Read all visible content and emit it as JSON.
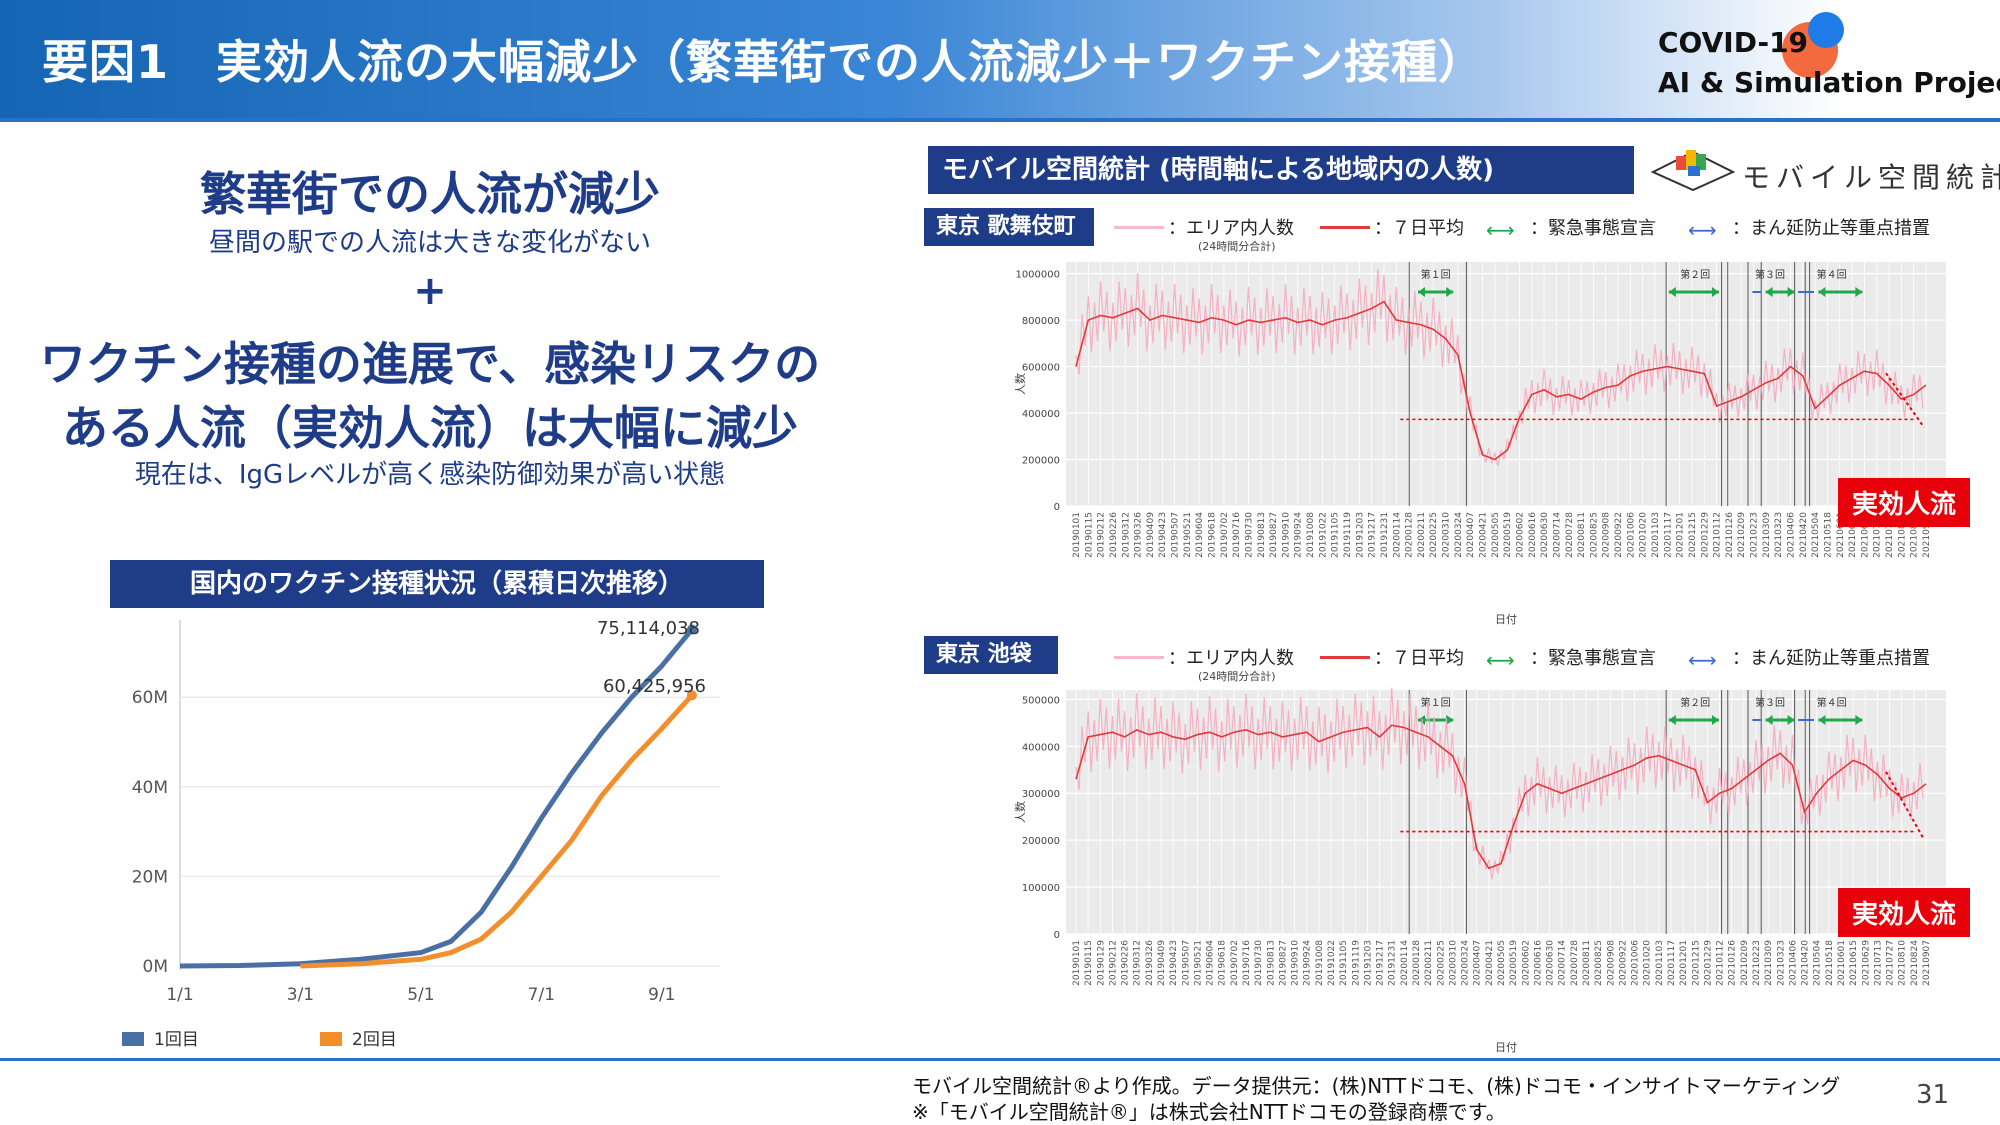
{
  "header": {
    "title": "要因1　実効人流の大幅減少（繁華街での人流減少＋ワクチン接種）",
    "project_line1": "COVID-19",
    "project_line2": "AI & Simulation Project"
  },
  "left": {
    "headline1": "繁華街での人流が減少",
    "sub1": "昼間の駅での人流は大きな変化がない",
    "plus": "+",
    "headline2": "ワクチン接種の進展で、感染リスクの",
    "headline3": "ある人流（実効人流）は大幅に減少",
    "sub2": "現在は、IgGレベルが高く感染防御効果が高い状態"
  },
  "vaccine_chart": {
    "title": "国内のワクチン接種状況（累積日次推移）",
    "label_first": "75,114,038",
    "label_second": "60,425,956",
    "legend_first": "1回目",
    "legend_second": "2回目"
  },
  "mobile": {
    "title": "モバイル空間統計 (時間軸による地域内の人数)",
    "logo_text": "モバイル空間統計",
    "area1": "東京 歌舞伎町",
    "area2": "東京 池袋",
    "legend_area": "：エリア内人数",
    "legend_area_sub": "(24時間分合計)",
    "legend_avg": "：７日平均",
    "legend_emergency": "：緊急事態宣言",
    "legend_priority": "：まん延防止等重点措置",
    "effective_label": "実効人流",
    "ylabel": "人数",
    "xlabel": "日付",
    "periods": [
      "第１回",
      "第２回",
      "第３回",
      "第４回"
    ]
  },
  "footer": {
    "line1": "モバイル空間統計®より作成。データ提供元：(株)NTTドコモ、(株)ドコモ・インサイトマーケティング",
    "line2": "※「モバイル空間統計®」は株式会社NTTドコモの登録商標です。",
    "page": "31"
  },
  "chart_data": [
    {
      "type": "line",
      "title": "国内のワクチン接種状況（累積日次推移）",
      "x_ticks": [
        "1/1",
        "3/1",
        "5/1",
        "7/1",
        "9/1"
      ],
      "y_ticks": [
        "0M",
        "20M",
        "40M",
        "60M"
      ],
      "ylim": [
        0,
        75000000
      ],
      "series": [
        {
          "name": "1回目",
          "color": "#4a6fa5",
          "x": [
            "1/1",
            "2/1",
            "3/1",
            "4/1",
            "5/1",
            "5/15",
            "6/1",
            "6/15",
            "7/1",
            "7/15",
            "8/1",
            "8/15",
            "9/1",
            "9/15"
          ],
          "values": [
            0,
            100000,
            500000,
            1500000,
            3000000,
            5500000,
            12000000,
            22000000,
            33000000,
            43000000,
            52000000,
            60000000,
            67000000,
            75114038
          ]
        },
        {
          "name": "2回目",
          "color": "#f28e2b",
          "x": [
            "3/1",
            "4/1",
            "5/1",
            "5/15",
            "6/1",
            "6/15",
            "7/1",
            "7/15",
            "8/1",
            "8/15",
            "9/1",
            "9/15"
          ],
          "values": [
            0,
            500000,
            1500000,
            3000000,
            6000000,
            12000000,
            20000000,
            28000000,
            38000000,
            46000000,
            53000000,
            60425956
          ]
        }
      ],
      "data_labels": [
        "75,114,038",
        "60,425,956"
      ]
    },
    {
      "type": "line",
      "title": "東京 歌舞伎町",
      "ylabel": "人数",
      "xlabel": "日付",
      "y_ticks": [
        0,
        200000,
        400000,
        600000,
        800000,
        1000000
      ],
      "ylim": [
        0,
        1050000
      ],
      "x_ticks": [
        "20190101",
        "20190115",
        "20190212",
        "20190226",
        "20190312",
        "20190326",
        "20190409",
        "20190423",
        "20190507",
        "20190521",
        "20190604",
        "20190618",
        "20190702",
        "20190716",
        "20190730",
        "20190813",
        "20190827",
        "20190910",
        "20190924",
        "20191008",
        "20191022",
        "20191105",
        "20191119",
        "20191203",
        "20191217",
        "20191231",
        "20200114",
        "20200128",
        "20200211",
        "20200225",
        "20200310",
        "20200324",
        "20200407",
        "20200421",
        "20200505",
        "20200519",
        "20200602",
        "20200616",
        "20200630",
        "20200714",
        "20200728",
        "20200811",
        "20200825",
        "20200908",
        "20200922",
        "20201006",
        "20201020",
        "20201103",
        "20201117",
        "20201201",
        "20201215",
        "20201229",
        "20210112",
        "20210126",
        "20210209",
        "20210223",
        "20210309",
        "20210323",
        "20210406",
        "20210420",
        "20210504",
        "20210518",
        "20210601",
        "20210615",
        "20210629",
        "20210713",
        "20210727",
        "20210810",
        "20210824",
        "20210907"
      ],
      "series": [
        {
          "name": "７日平均",
          "color": "#e03a3a",
          "values": [
            600000,
            800000,
            820000,
            810000,
            830000,
            850000,
            800000,
            820000,
            810000,
            800000,
            790000,
            810000,
            800000,
            780000,
            800000,
            790000,
            800000,
            810000,
            790000,
            800000,
            780000,
            800000,
            810000,
            830000,
            850000,
            880000,
            800000,
            790000,
            780000,
            760000,
            720000,
            650000,
            400000,
            220000,
            200000,
            240000,
            380000,
            480000,
            500000,
            470000,
            480000,
            460000,
            490000,
            510000,
            520000,
            560000,
            580000,
            590000,
            600000,
            590000,
            580000,
            570000,
            430000,
            450000,
            470000,
            500000,
            530000,
            550000,
            600000,
            560000,
            420000,
            470000,
            520000,
            550000,
            580000,
            570000,
            520000,
            460000,
            480000,
            520000
          ]
        }
      ]
    },
    {
      "type": "line",
      "title": "東京 池袋",
      "ylabel": "人数",
      "xlabel": "日付",
      "y_ticks": [
        0,
        100000,
        200000,
        300000,
        400000,
        500000
      ],
      "ylim": [
        0,
        520000
      ],
      "x_ticks": [
        "20190101",
        "20190115",
        "20190129",
        "20190212",
        "20190226",
        "20190312",
        "20190326",
        "20190409",
        "20190423",
        "20190507",
        "20190521",
        "20190604",
        "20190618",
        "20190702",
        "20190716",
        "20190730",
        "20190813",
        "20190827",
        "20190910",
        "20190924",
        "20191008",
        "20191022",
        "20191105",
        "20191119",
        "20191203",
        "20191217",
        "20191231",
        "20200114",
        "20200128",
        "20200211",
        "20200225",
        "20200310",
        "20200324",
        "20200407",
        "20200421",
        "20200505",
        "20200519",
        "20200602",
        "20200616",
        "20200630",
        "20200714",
        "20200728",
        "20200811",
        "20200825",
        "20200908",
        "20200922",
        "20201006",
        "20201020",
        "20201103",
        "20201117",
        "20201201",
        "20201215",
        "20201229",
        "20210112",
        "20210126",
        "20210209",
        "20210223",
        "20210309",
        "20210323",
        "20210406",
        "20210420",
        "20210504",
        "20210518",
        "20210601",
        "20210615",
        "20210629",
        "20210713",
        "20210727",
        "20210810",
        "20210824",
        "20210907"
      ],
      "series": [
        {
          "name": "７日平均",
          "color": "#e03a3a",
          "values": [
            330000,
            420000,
            425000,
            430000,
            420000,
            435000,
            425000,
            430000,
            420000,
            415000,
            425000,
            430000,
            420000,
            430000,
            435000,
            425000,
            430000,
            420000,
            425000,
            430000,
            410000,
            420000,
            430000,
            435000,
            440000,
            420000,
            445000,
            440000,
            430000,
            420000,
            400000,
            380000,
            320000,
            180000,
            140000,
            150000,
            230000,
            300000,
            320000,
            310000,
            300000,
            310000,
            320000,
            330000,
            340000,
            350000,
            360000,
            375000,
            380000,
            370000,
            360000,
            350000,
            280000,
            300000,
            310000,
            330000,
            350000,
            370000,
            385000,
            360000,
            260000,
            300000,
            330000,
            350000,
            370000,
            360000,
            340000,
            310000,
            290000,
            300000,
            320000
          ]
        }
      ]
    }
  ]
}
